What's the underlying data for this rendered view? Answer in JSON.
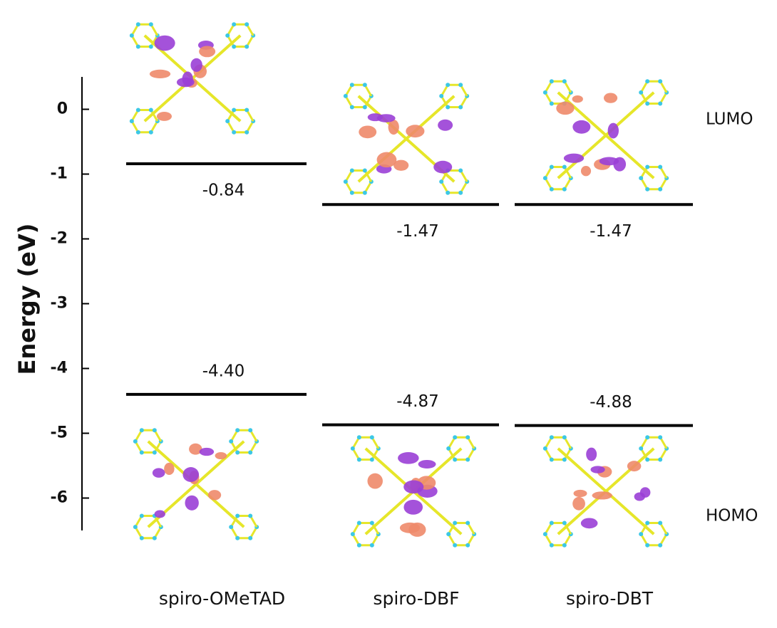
{
  "chart_data": {
    "type": "level",
    "y_label": "Energy (eV)",
    "categories": [
      "spiro-OMeTAD",
      "spiro-DBF",
      "spiro-DBT"
    ],
    "series": [
      {
        "name": "LUMO",
        "color": "#000000",
        "values": [
          -0.84,
          -1.47,
          -1.47
        ],
        "value_labels": [
          "-0.84",
          "-1.47",
          "-1.47"
        ]
      },
      {
        "name": "HOMO",
        "color": "#000000",
        "values": [
          -4.4,
          -4.87,
          -4.88
        ],
        "value_labels": [
          "-4.40",
          "-4.87",
          "-4.88"
        ]
      }
    ],
    "ylim": [
      -6.5,
      0.5
    ],
    "yticks": [
      0,
      -1,
      -2,
      -3,
      -4,
      -5,
      -6
    ]
  }
}
